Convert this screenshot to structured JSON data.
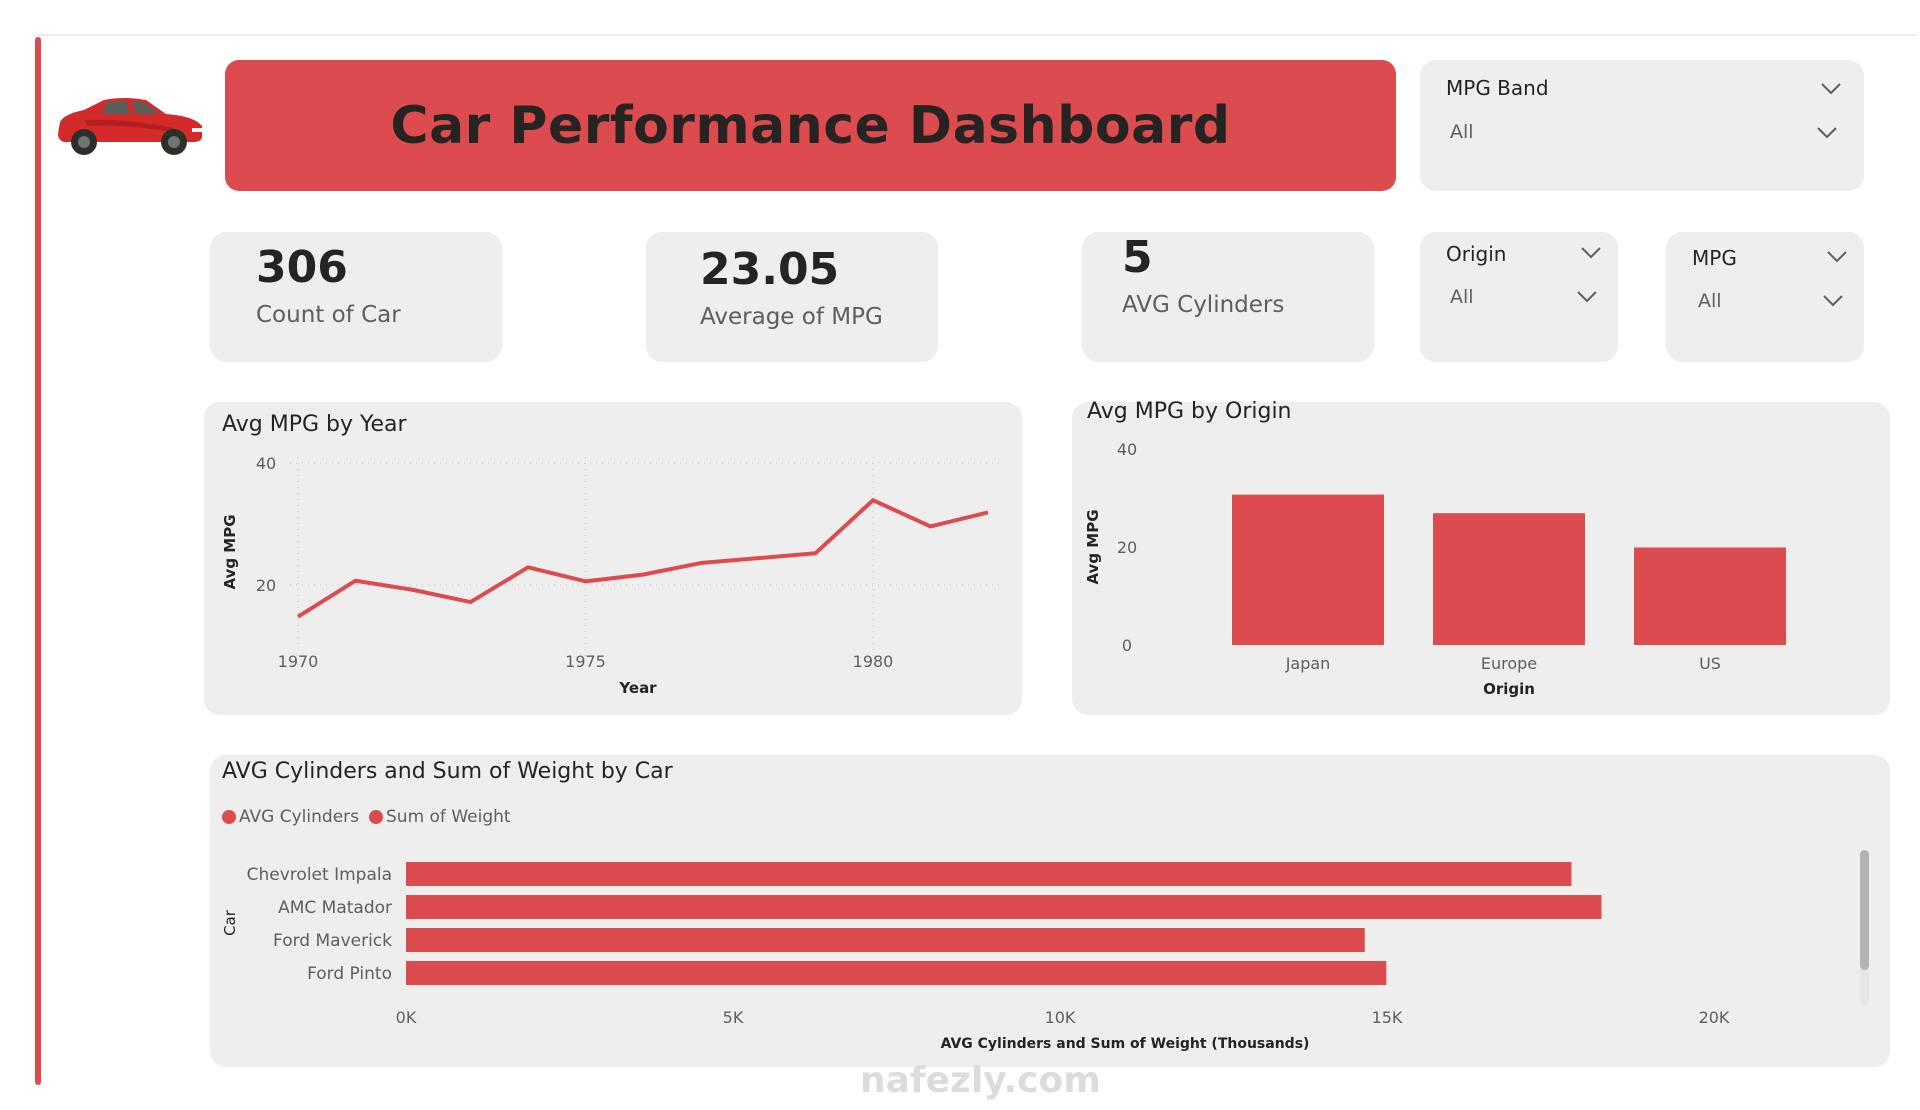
{
  "header": {
    "title": "Car Performance Dashboard",
    "logo_icon": "red-sports-car-icon"
  },
  "slicers": [
    {
      "id": "mpg-band",
      "title": "MPG Band",
      "value": "All"
    },
    {
      "id": "origin",
      "title": "Origin",
      "value": "All"
    },
    {
      "id": "mpg",
      "title": "MPG",
      "value": "All"
    }
  ],
  "kpis": [
    {
      "value": "306",
      "label": "Count of Car"
    },
    {
      "value": "23.05",
      "label": "Average of MPG"
    },
    {
      "value": "5",
      "label": "AVG Cylinders"
    }
  ],
  "colors": {
    "accent": "#dc4c4f",
    "card_bg": "#eeeeee",
    "text": "#252423",
    "muted": "#605e5c"
  },
  "watermark": "nafezly.com",
  "chart_data": [
    {
      "type": "line",
      "title": "Avg MPG by Year",
      "xlabel": "Year",
      "ylabel": "Avg MPG",
      "x": [
        1970,
        1971,
        1972,
        1973,
        1974,
        1975,
        1976,
        1977,
        1978,
        1979,
        1980,
        1981,
        1982
      ],
      "values": [
        14.8,
        20.7,
        19.2,
        17.2,
        22.9,
        20.6,
        21.7,
        23.6,
        24.4,
        25.2,
        33.9,
        29.6,
        31.9
      ],
      "x_ticks": [
        "1970",
        "1975",
        "1980"
      ],
      "y_ticks": [
        "20",
        "40"
      ],
      "ylim": [
        10,
        40
      ],
      "xlim": [
        1970,
        1982
      ],
      "grid": true
    },
    {
      "type": "bar",
      "title": "Avg MPG by Origin",
      "xlabel": "Origin",
      "ylabel": "Avg MPG",
      "categories": [
        "Japan",
        "Europe",
        "US"
      ],
      "values": [
        30.7,
        26.9,
        19.9
      ],
      "y_ticks": [
        "0",
        "20",
        "40"
      ],
      "ylim": [
        0,
        40
      ],
      "grid": false
    },
    {
      "type": "bar",
      "orientation": "horizontal",
      "title": "AVG Cylinders and Sum of Weight by Car",
      "xlabel": "AVG Cylinders and Sum of Weight (Thousands)",
      "ylabel": "Car",
      "legend": [
        "AVG Cylinders",
        "Sum of Weight"
      ],
      "legend_position": "top-left",
      "categories": [
        "Chevrolet Impala",
        "AMC Matador",
        "Ford Maverick",
        "Ford Pinto"
      ],
      "series": [
        {
          "name": "Sum of Weight",
          "values": [
            17820,
            18280,
            14660,
            14990
          ]
        }
      ],
      "x_ticks": [
        "0K",
        "5K",
        "10K",
        "15K",
        "20K"
      ],
      "xlim": [
        0,
        21500
      ]
    }
  ]
}
